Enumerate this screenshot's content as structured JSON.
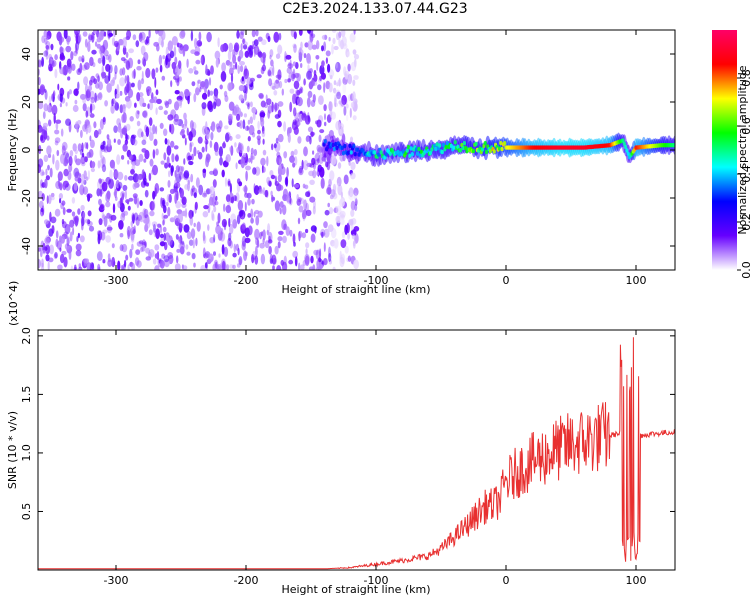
{
  "title": "C2E3.2024.133.07.44.G23",
  "chart_data": [
    {
      "type": "heatmap",
      "xlabel": "Height of straight line (km)",
      "ylabel": "Frequency (Hz)",
      "xlim": [
        -360,
        130
      ],
      "ylim": [
        -50,
        50
      ],
      "xticks": [
        -300,
        -200,
        -100,
        0,
        100
      ],
      "yticks": [
        40,
        20,
        0,
        -20,
        -40
      ],
      "colorbar": {
        "label": "Normalized spectral amplitude",
        "range": [
          0,
          1
        ],
        "ticks": [
          0.0,
          0.2,
          0.4,
          0.6,
          0.8
        ],
        "colors": [
          "#ffffff",
          "#6600ff",
          "#0000ff",
          "#00ffff",
          "#00ff00",
          "#ffff00",
          "#ff0000",
          "#ff0066"
        ]
      },
      "noise_region_x": [
        -360,
        -135
      ],
      "signal_trace": {
        "x": [
          -140,
          -120,
          -100,
          -80,
          -60,
          -40,
          -20,
          0,
          20,
          40,
          60,
          80,
          90,
          95,
          100,
          120,
          130
        ],
        "freq": [
          2,
          0,
          -2,
          -1,
          0,
          2,
          1,
          1,
          1,
          1,
          1,
          2,
          4,
          -3,
          1,
          2,
          2
        ],
        "amplitude": [
          0.3,
          0.35,
          0.45,
          0.5,
          0.5,
          0.5,
          0.6,
          0.7,
          0.85,
          0.9,
          0.9,
          0.85,
          0.5,
          0.4,
          0.85,
          0.6,
          0.5
        ]
      }
    },
    {
      "type": "line",
      "xlabel": "Height of straight line (km)",
      "ylabel": "SNR (10 * v/v)",
      "y_multiplier": "(x10^4)",
      "xlim": [
        -360,
        130
      ],
      "ylim": [
        0,
        2.05
      ],
      "xticks": [
        -300,
        -200,
        -100,
        0,
        100
      ],
      "yticks": [
        2.0,
        1.5,
        1.0,
        0.5
      ],
      "color": "#e83030",
      "series": [
        {
          "x": [
            -360,
            -300,
            -200,
            -140,
            -120,
            -100,
            -80,
            -60,
            -50,
            -40,
            -30,
            -20,
            -15,
            -10,
            -5,
            0,
            10,
            20,
            30,
            40,
            50,
            60,
            70,
            80,
            85,
            88,
            92,
            95,
            97,
            100,
            103,
            110,
            120,
            130
          ],
          "y": [
            0.01,
            0.01,
            0.01,
            0.01,
            0.02,
            0.05,
            0.08,
            0.12,
            0.18,
            0.28,
            0.38,
            0.5,
            0.55,
            0.55,
            0.6,
            0.75,
            0.85,
            0.92,
            0.98,
            1.03,
            1.07,
            1.1,
            1.13,
            1.15,
            1.16,
            1.17,
            1.2,
            1.1,
            1.3,
            1.2,
            1.15,
            1.16,
            1.17,
            1.18
          ]
        }
      ]
    }
  ]
}
